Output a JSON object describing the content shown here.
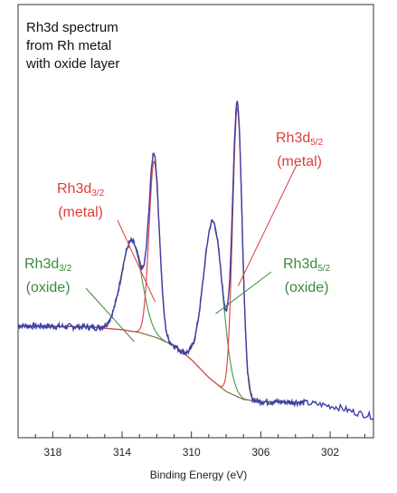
{
  "chart_data": {
    "type": "line",
    "title_lines": [
      "Rh3d spectrum",
      "from Rh metal",
      "with oxide layer"
    ],
    "xlabel": "Binding Energy (eV)",
    "ylabel": "",
    "xlim": [
      320,
      299.5
    ],
    "x_reversed": true,
    "xticks": [
      318,
      314,
      310,
      306,
      302
    ],
    "ylim": [
      0,
      100
    ],
    "grid": false,
    "colors": {
      "envelope": "#3f3fa5",
      "fit": "#555555",
      "metal": "#e0474c",
      "oxide": "#52a052",
      "background": "#8a6a3a"
    },
    "annotations": [
      {
        "id": "rh3d52-metal",
        "name": "Rh3d",
        "sub": "5/2",
        "state": "(metal)",
        "color": "#e03b3b",
        "points_to_x": 307.3
      },
      {
        "id": "rh3d32-metal",
        "name": "Rh3d",
        "sub": "3/2",
        "state": "(metal)",
        "color": "#e03b3b",
        "points_to_x": 312.2
      },
      {
        "id": "rh3d32-oxide",
        "name": "Rh3d",
        "sub": "3/2",
        "state": "(oxide)",
        "color": "#3b8a3b",
        "points_to_x": 313.4
      },
      {
        "id": "rh3d52-oxide",
        "name": "Rh3d",
        "sub": "5/2",
        "state": "(oxide)",
        "color": "#3b8a3b",
        "points_to_x": 308.7
      }
    ],
    "peaks": {
      "metal": [
        {
          "center": 307.35,
          "height": 72.4,
          "fwhm": 0.65
        },
        {
          "center": 312.15,
          "height": 44.0,
          "fwhm": 0.7
        }
      ],
      "oxide": [
        {
          "center": 308.75,
          "height": 40.0,
          "fwhm": 1.3
        },
        {
          "center": 313.45,
          "height": 22.6,
          "fwhm": 1.4
        }
      ]
    },
    "background": [
      [
        320,
        24
      ],
      [
        316,
        23.7
      ],
      [
        314,
        23
      ],
      [
        313,
        22.3
      ],
      [
        312,
        21
      ],
      [
        311,
        19
      ],
      [
        310,
        15.5
      ],
      [
        309,
        11
      ],
      [
        308,
        7.5
      ],
      [
        307,
        5.5
      ],
      [
        306,
        5
      ],
      [
        304,
        4.8
      ],
      [
        303.5,
        4.7
      ]
    ],
    "raw_tail": [
      [
        303.5,
        4.7
      ],
      [
        302.5,
        4.2
      ],
      [
        301.5,
        3.5
      ],
      [
        300.5,
        2.2
      ],
      [
        299.5,
        1.2
      ]
    ]
  }
}
